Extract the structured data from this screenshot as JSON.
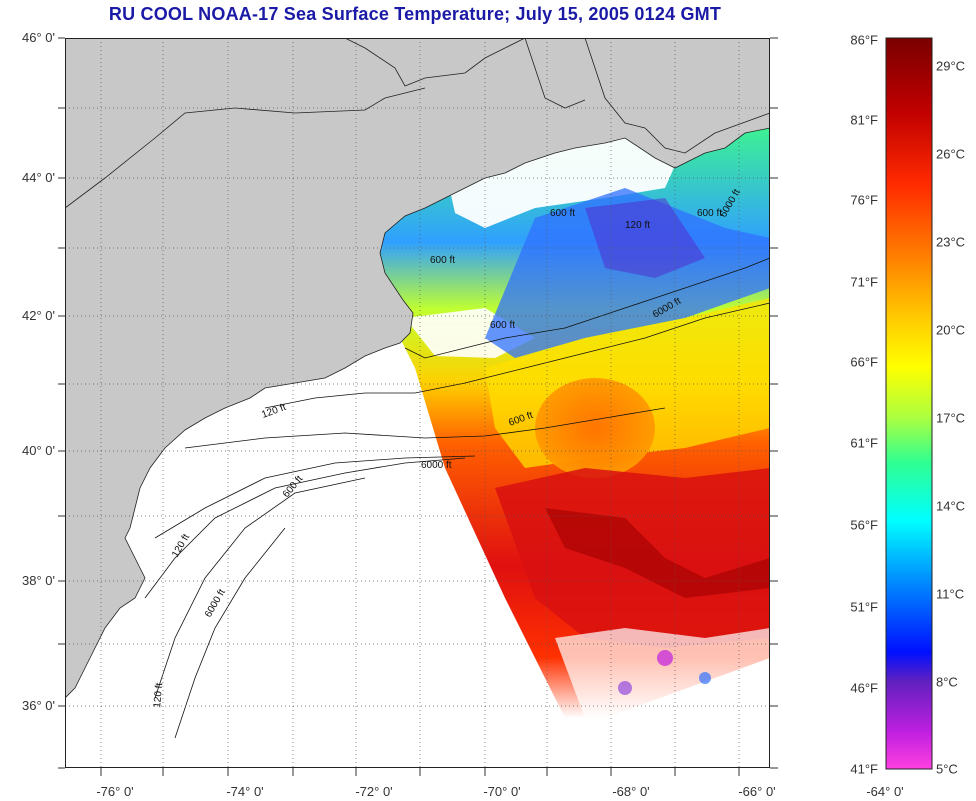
{
  "title": "RU COOL  NOAA-17  Sea Surface Temperature;  July 15, 2005 0124 GMT",
  "latitude_labels": [
    "46° 0'",
    "44° 0'",
    "42° 0'",
    "40° 0'",
    "38° 0'",
    "36° 0'"
  ],
  "longitude_labels": [
    "-76° 0'",
    "-74° 0'",
    "-72° 0'",
    "-70° 0'",
    "-68° 0'",
    "-66° 0'",
    "-64° 0'"
  ],
  "contour_labels": [
    "600 ft",
    "600 ft",
    "600 ft",
    "120 ft",
    "6000 ft",
    "600 ft",
    "6000 ft",
    "600 ft",
    "120 ft",
    "6000 ft",
    "120 ft",
    "600 ft",
    "6000 ft",
    "120 ft"
  ],
  "colorbar": {
    "fahrenheit": [
      "86°F",
      "81°F",
      "76°F",
      "71°F",
      "66°F",
      "61°F",
      "56°F",
      "51°F",
      "46°F",
      "41°F"
    ],
    "celsius": [
      "29°C",
      "26°C",
      "23°C",
      "20°C",
      "17°C",
      "14°C",
      "11°C",
      "8°C",
      "5°C"
    ]
  },
  "colors": {
    "land": "#c8c8c8",
    "title": "#1a1aa6",
    "gradient": [
      "#7a0000",
      "#c81010",
      "#ff2a00",
      "#ff7a00",
      "#ffc800",
      "#ffff00",
      "#aaff40",
      "#30ff90",
      "#00ffff",
      "#0090ff",
      "#0010ff",
      "#6020c0",
      "#c020e0",
      "#ff40e0"
    ]
  }
}
